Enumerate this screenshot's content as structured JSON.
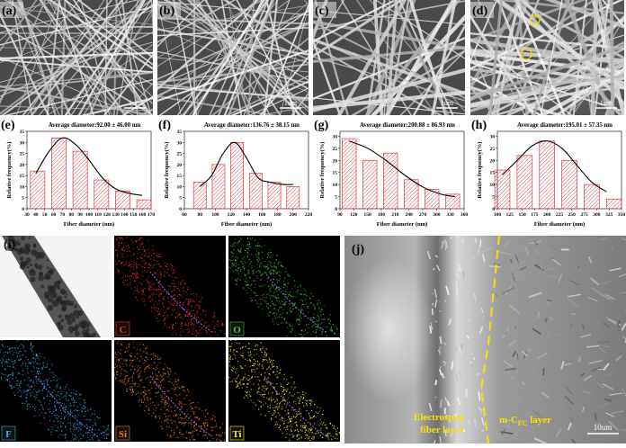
{
  "sem": [
    {
      "label": "(a)",
      "scale": "1um"
    },
    {
      "label": "(b)",
      "scale": "1um"
    },
    {
      "label": "(c)",
      "scale": "1um"
    },
    {
      "label": "(d)",
      "scale": "1um"
    }
  ],
  "chart_data": [
    {
      "type": "bar",
      "label": "(e)",
      "title": "Average diameter:92.00 ± 46.00 nm",
      "xlabel": "Fiber diameter (nm)",
      "ylabel": "Relative frequency(%)",
      "x": [
        42,
        66,
        90,
        114,
        138,
        162
      ],
      "values": [
        17,
        32,
        26,
        13,
        8,
        4
      ],
      "color": "#e0393e",
      "xlim": [
        30,
        170
      ],
      "xticks": [
        30,
        40,
        50,
        60,
        70,
        80,
        90,
        100,
        110,
        120,
        130,
        140,
        150,
        160,
        170
      ],
      "ylim": [
        0,
        35
      ],
      "yticks": [
        0,
        5,
        10,
        15,
        20,
        25,
        30,
        35
      ],
      "fit": {
        "x": [
          40,
          55,
          70,
          85,
          100,
          115,
          130,
          145,
          160
        ],
        "y": [
          16,
          26,
          32,
          29,
          22,
          14,
          9,
          7,
          6
        ],
        "color": "#000000"
      }
    },
    {
      "type": "bar",
      "label": "(f)",
      "title": "Average diameter:136.76 ± 38.15 nm",
      "xlabel": "Fiber diameter (nm)",
      "ylabel": "Relative frequency(%)",
      "x": [
        80,
        104,
        128,
        152,
        176,
        200
      ],
      "values": [
        12,
        20,
        30,
        16,
        12,
        10
      ],
      "color": "#e0393e",
      "xlim": [
        60,
        220
      ],
      "xticks": [
        60,
        80,
        100,
        120,
        140,
        160,
        180,
        200,
        220
      ],
      "ylim": [
        0,
        35
      ],
      "yticks": [
        0,
        5,
        10,
        15,
        20,
        25,
        30,
        35
      ],
      "fit": {
        "x": [
          80,
          95,
          110,
          125,
          140,
          155,
          170,
          185,
          200
        ],
        "y": [
          10,
          15,
          25,
          30,
          23,
          14,
          12,
          11,
          11
        ],
        "color": "#000000"
      }
    },
    {
      "type": "bar",
      "label": "(g)",
      "title": "Average diameter:200.88 ± 86.93 nm",
      "xlabel": "Fiber diameter (nm)",
      "ylabel": "Relative frequency(%)",
      "x": [
        110,
        155,
        200,
        245,
        290,
        335
      ],
      "values": [
        29,
        20,
        23,
        12,
        8,
        6
      ],
      "color": "#e0393e",
      "xlim": [
        90,
        360
      ],
      "xticks": [
        90,
        120,
        150,
        180,
        210,
        240,
        270,
        300,
        330,
        360
      ],
      "ylim": [
        0,
        32
      ],
      "yticks": [
        0,
        5,
        10,
        15,
        20,
        25,
        30
      ],
      "fit": {
        "x": [
          110,
          150,
          190,
          230,
          270,
          310,
          340
        ],
        "y": [
          28,
          25,
          20,
          14,
          9,
          6,
          5
        ],
        "color": "#000000"
      }
    },
    {
      "type": "bar",
      "label": "(h)",
      "title": "Average diameter:195.01 ± 57.35 nm",
      "xlabel": "Fiber diameter (nm)",
      "ylabel": "Relative frequency(%)",
      "x": [
        110,
        155,
        200,
        245,
        290,
        335
      ],
      "values": [
        16,
        22,
        28,
        20,
        10,
        4
      ],
      "color": "#e0393e",
      "xlim": [
        100,
        350
      ],
      "xticks": [
        100,
        125,
        150,
        175,
        200,
        225,
        250,
        275,
        300,
        325,
        350
      ],
      "ylim": [
        0,
        32
      ],
      "yticks": [
        0,
        5,
        10,
        15,
        20,
        25,
        30
      ],
      "fit": {
        "x": [
          110,
          140,
          170,
          200,
          230,
          260,
          290,
          320
        ],
        "y": [
          14,
          20,
          26,
          28,
          25,
          18,
          11,
          7
        ],
        "color": "#000000"
      }
    }
  ],
  "eds": {
    "label": "(i)",
    "maps": [
      {
        "element": "C",
        "color": "#ff2a2a"
      },
      {
        "element": "O",
        "color": "#37c837"
      },
      {
        "element": "F",
        "color": "#2fb4e6"
      },
      {
        "element": "Si",
        "color": "#f07a1a"
      },
      {
        "element": "Ti",
        "color": "#f2f21e"
      }
    ]
  },
  "cross_section": {
    "label": "(j)",
    "left_layer": [
      "Electrospun",
      "fiber layer"
    ],
    "right_layer": {
      "main": "m-C",
      "sub": "FC",
      "rest": " layer"
    },
    "scale": "10um"
  }
}
